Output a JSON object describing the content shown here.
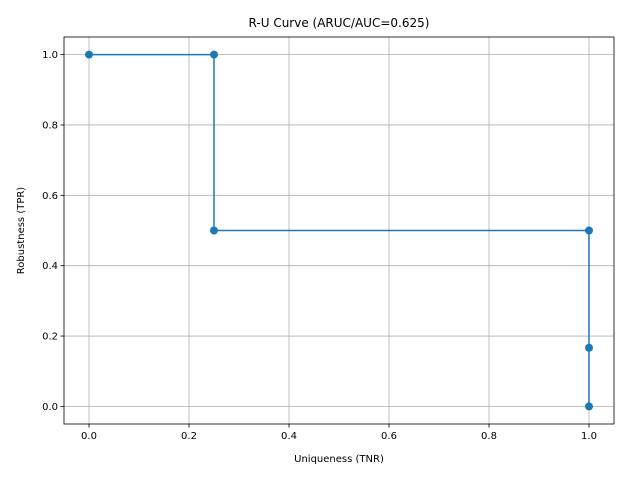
{
  "chart_data": {
    "type": "line",
    "title": "R-U Curve (ARUC/AUC=0.625)",
    "xlabel": "Uniqueness (TNR)",
    "ylabel": "Robustness (TPR)",
    "xlim": [
      -0.05,
      1.05
    ],
    "ylim": [
      -0.05,
      1.05
    ],
    "xticks": [
      0.0,
      0.2,
      0.4,
      0.6,
      0.8,
      1.0
    ],
    "yticks": [
      0.0,
      0.2,
      0.4,
      0.6,
      0.8,
      1.0
    ],
    "xtick_labels": [
      "0.0",
      "0.2",
      "0.4",
      "0.6",
      "0.8",
      "1.0"
    ],
    "ytick_labels": [
      "0.0",
      "0.2",
      "0.4",
      "0.6",
      "0.8",
      "1.0"
    ],
    "grid": true,
    "line_style": "steps",
    "series": [
      {
        "color": "#1f77b4",
        "marker": "circle",
        "x": [
          0.0,
          0.25,
          0.25,
          1.0,
          1.0,
          1.0
        ],
        "y": [
          1.0,
          1.0,
          0.5,
          0.5,
          0.1667,
          0.0
        ]
      }
    ]
  }
}
